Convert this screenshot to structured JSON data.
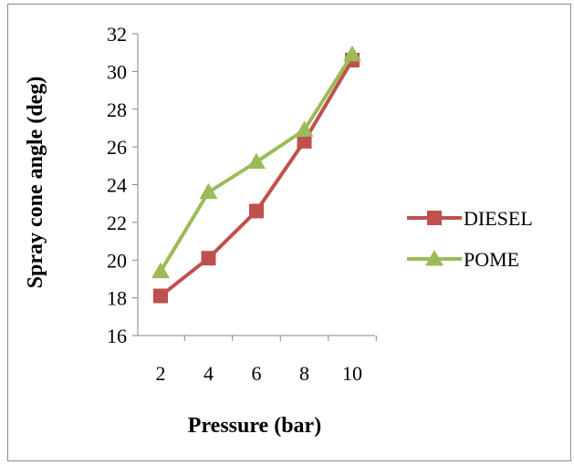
{
  "chart_data": {
    "type": "line",
    "title": "",
    "xlabel": "Pressure (bar)",
    "ylabel": "Spray cone angle (deg)",
    "x": [
      2,
      4,
      6,
      8,
      10
    ],
    "xticks": [
      "2",
      "4",
      "6",
      "8",
      "10"
    ],
    "ylim": [
      16,
      32
    ],
    "yticks": [
      "16",
      "18",
      "20",
      "22",
      "24",
      "26",
      "28",
      "30",
      "32"
    ],
    "grid": false,
    "legend_position": "right",
    "series": [
      {
        "name": "DIESEL",
        "values": [
          18.1,
          20.1,
          22.6,
          26.3,
          30.6
        ],
        "color": "#c0504d",
        "marker": "square"
      },
      {
        "name": "POME",
        "values": [
          19.4,
          23.6,
          25.2,
          26.9,
          30.9
        ],
        "color": "#9bbb59",
        "marker": "triangle"
      }
    ]
  }
}
